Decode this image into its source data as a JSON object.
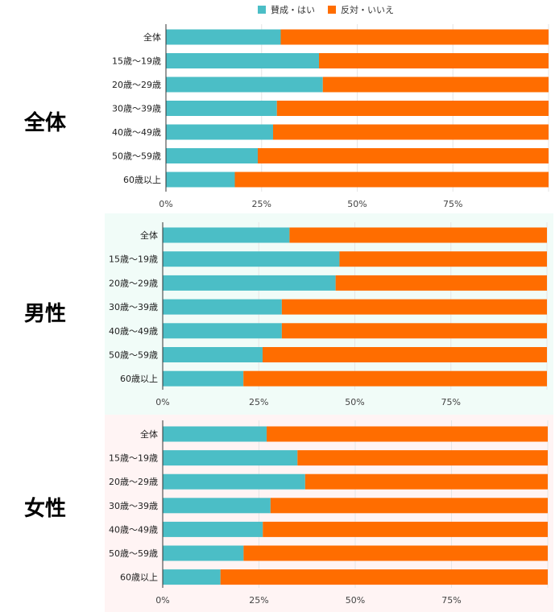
{
  "legend": {
    "items": [
      {
        "label": "賛成・はい",
        "color": "#4bbec6"
      },
      {
        "label": "反対・いいえ",
        "color": "#ff6d00"
      }
    ]
  },
  "sections": [
    {
      "label": "全体",
      "background": "#ffffff"
    },
    {
      "label": "男性",
      "background": "#f1fcf8"
    },
    {
      "label": "女性",
      "background": "#fff4f4"
    }
  ],
  "chart_data": [
    {
      "type": "bar",
      "orientation": "horizontal",
      "stacked": true,
      "title": "全体",
      "categories": [
        "全体",
        "15歳〜19歳",
        "20歳〜29歳",
        "30歳〜39歳",
        "40歳〜49歳",
        "50歳〜59歳",
        "60歳以上"
      ],
      "series": [
        {
          "name": "賛成・はい",
          "color": "#4bbec6",
          "values": [
            30,
            40,
            41,
            29,
            28,
            24,
            18
          ]
        },
        {
          "name": "反対・いいえ",
          "color": "#ff6d00",
          "values": [
            70,
            60,
            59,
            71,
            72,
            76,
            82
          ]
        }
      ],
      "xlim": [
        0,
        100
      ],
      "x_ticks": [
        "0%",
        "25%",
        "50%",
        "75%"
      ],
      "legend": "top"
    },
    {
      "type": "bar",
      "orientation": "horizontal",
      "stacked": true,
      "title": "男性",
      "categories": [
        "全体",
        "15歳〜19歳",
        "20歳〜29歳",
        "30歳〜39歳",
        "40歳〜49歳",
        "50歳〜59歳",
        "60歳以上"
      ],
      "series": [
        {
          "name": "賛成・はい",
          "color": "#4bbec6",
          "values": [
            33,
            46,
            45,
            31,
            31,
            26,
            21
          ]
        },
        {
          "name": "反対・いいえ",
          "color": "#ff6d00",
          "values": [
            67,
            54,
            55,
            69,
            69,
            74,
            79
          ]
        }
      ],
      "xlim": [
        0,
        100
      ],
      "x_ticks": [
        "0%",
        "25%",
        "50%",
        "75%"
      ]
    },
    {
      "type": "bar",
      "orientation": "horizontal",
      "stacked": true,
      "title": "女性",
      "categories": [
        "全体",
        "15歳〜19歳",
        "20歳〜29歳",
        "30歳〜39歳",
        "40歳〜49歳",
        "50歳〜59歳",
        "60歳以上"
      ],
      "series": [
        {
          "name": "賛成・はい",
          "color": "#4bbec6",
          "values": [
            27,
            35,
            37,
            28,
            26,
            21,
            15
          ]
        },
        {
          "name": "反対・いいえ",
          "color": "#ff6d00",
          "values": [
            73,
            65,
            63,
            72,
            74,
            79,
            85
          ]
        }
      ],
      "xlim": [
        0,
        100
      ],
      "x_ticks": [
        "0%",
        "25%",
        "50%",
        "75%"
      ]
    }
  ]
}
